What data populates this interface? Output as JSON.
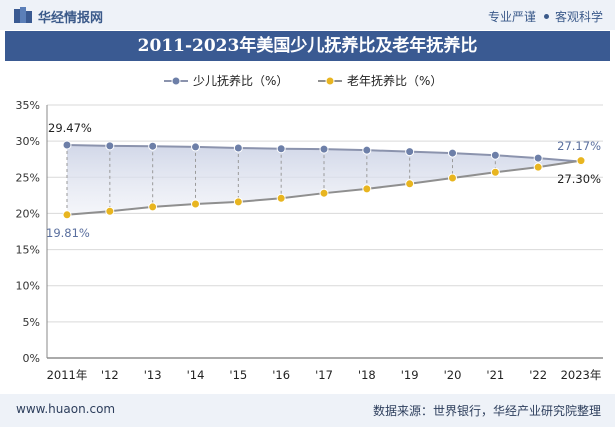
{
  "header": {
    "brand": "华经情报网",
    "tag1": "专业严谨",
    "tag2": "客观科学"
  },
  "chart_data": {
    "type": "line",
    "title": "2011-2023年美国少儿抚养比及老年抚养比",
    "categories": [
      "2011年",
      "'12",
      "'13",
      "'14",
      "'15",
      "'16",
      "'17",
      "'18",
      "'19",
      "'20",
      "'21",
      "'22",
      "2023年"
    ],
    "ylim": [
      0,
      35
    ],
    "yticks": [
      "0%",
      "5%",
      "10%",
      "15%",
      "20%",
      "25%",
      "30%",
      "35%"
    ],
    "grid": true,
    "legend_position": "top-center",
    "series": [
      {
        "name": "少儿抚养比（%）",
        "color": "#6d7fa8",
        "values": [
          29.47,
          29.35,
          29.3,
          29.2,
          29.05,
          28.95,
          28.9,
          28.75,
          28.55,
          28.35,
          28.05,
          27.65,
          27.17
        ],
        "start_label": "29.47%",
        "end_label": "27.17%"
      },
      {
        "name": "老年抚养比（%）",
        "color": "#e8b520",
        "line_color": "#8f8f8f",
        "values": [
          19.81,
          20.3,
          20.9,
          21.3,
          21.6,
          22.1,
          22.8,
          23.4,
          24.1,
          24.9,
          25.7,
          26.4,
          27.3
        ],
        "start_label": "19.81%",
        "end_label": "27.30%"
      }
    ]
  },
  "footer": {
    "site": "www.huaon.com",
    "source": "数据来源：世界银行，华经产业研究院整理"
  }
}
